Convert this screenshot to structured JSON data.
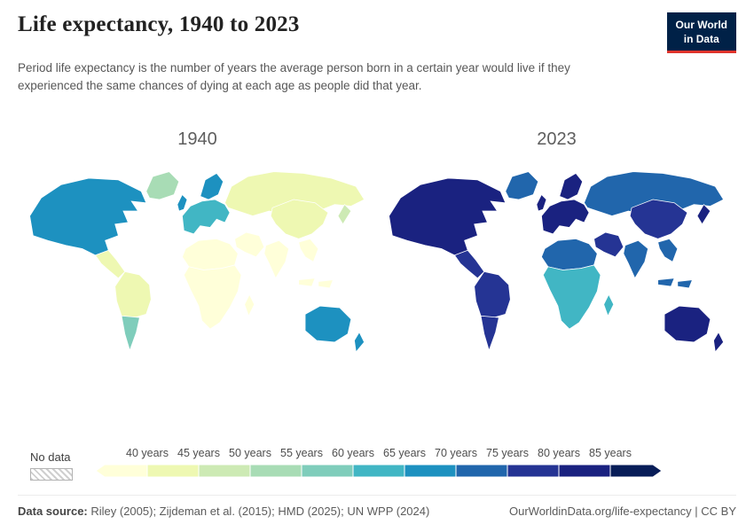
{
  "header": {
    "title": "Life expectancy, 1940 to 2023",
    "subtitle": "Period life expectancy is the number of years the average person born in a certain year would live if they experienced the same chances of dying at each age as people did that year.",
    "logo": {
      "line1": "Our World",
      "line2": "in Data"
    }
  },
  "chart_data": {
    "type": "heatmap",
    "title": "Life expectancy, 1940 to 2023",
    "unit": "years",
    "maps": [
      {
        "year": "1940",
        "values": {
          "greenland": 52,
          "north-america": 66,
          "mexico": 42,
          "south-america": 41,
          "argentina": 56,
          "uk": 65,
          "scandinavia": 68,
          "europe": 62,
          "russia": 43,
          "middle-east": 37,
          "africa-north": 38,
          "africa-sub": 34,
          "madagascar": 36,
          "india": 34,
          "china": 41,
          "southeast-asia": 39,
          "japan": 49,
          "indonesia": 38,
          "australia": 66,
          "new-zealand": 67
        }
      },
      {
        "year": "2023",
        "values": {
          "greenland": 72,
          "north-america": 81,
          "mexico": 75,
          "south-america": 76,
          "argentina": 77,
          "uk": 81,
          "scandinavia": 83,
          "europe": 81,
          "russia": 71,
          "middle-east": 77,
          "africa-north": 73,
          "africa-sub": 62,
          "madagascar": 64,
          "india": 71,
          "china": 78,
          "southeast-asia": 73,
          "japan": 84,
          "indonesia": 71,
          "australia": 83,
          "new-zealand": 82
        }
      }
    ],
    "legend": {
      "no_data_label": "No data",
      "breaks": [
        40,
        45,
        50,
        55,
        60,
        65,
        70,
        75,
        80,
        85
      ],
      "tick_labels": [
        "40 years",
        "45 years",
        "50 years",
        "55 years",
        "60 years",
        "65 years",
        "70 years",
        "75 years",
        "80 years",
        "85 years"
      ],
      "colors": [
        "#ffffd9",
        "#eef8b2",
        "#cdeab4",
        "#a8dcb5",
        "#7fcdbb",
        "#41b6c4",
        "#1d91c0",
        "#2166ac",
        "#253494",
        "#1a2280",
        "#081d58"
      ]
    }
  },
  "footer": {
    "source_label": "Data source:",
    "source_text": " Riley (2005); Zijdeman et al. (2015); HMD (2025); UN WPP (2024)",
    "link_text": "OurWorldinData.org/life-expectancy | CC BY"
  }
}
